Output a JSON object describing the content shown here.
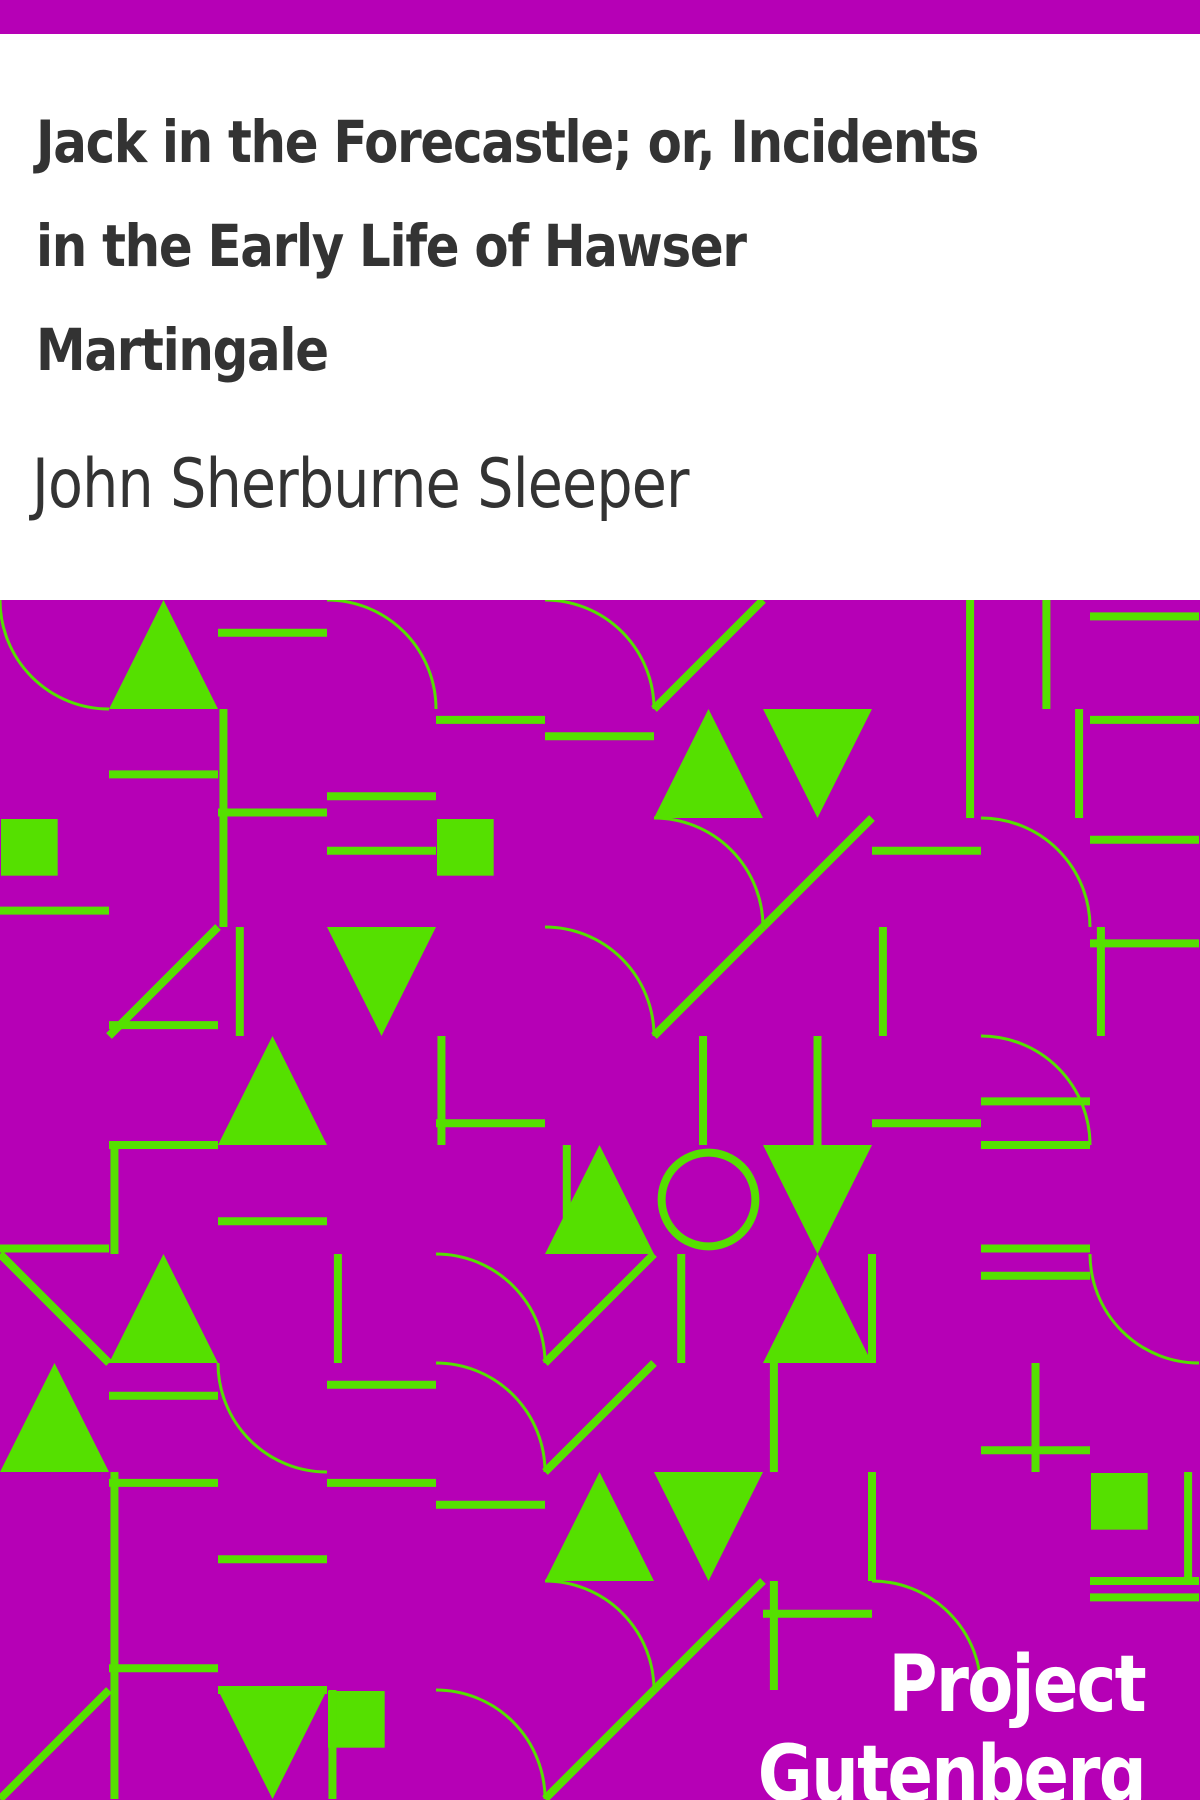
{
  "book": {
    "title": "Jack in the Forecastle; or, Incidents in the Early Life of Hawser Martingale",
    "author": "John Sherburne Sleeper",
    "publisher": "Project Gutenberg"
  },
  "colors": {
    "band": "#b600b6",
    "pattern_background": "#b600b6",
    "pattern_foreground": "#55e000",
    "title_text": "#333333",
    "publisher_text": "#ffffff"
  }
}
